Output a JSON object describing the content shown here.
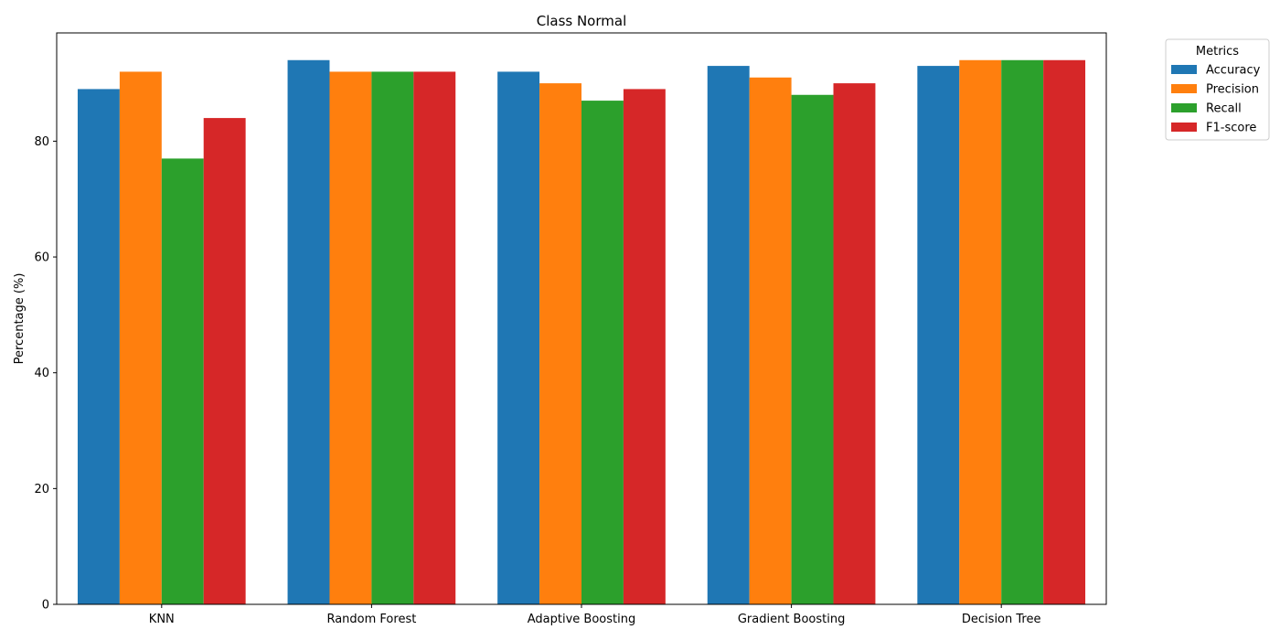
{
  "chart_data": {
    "type": "bar",
    "title": "Class Normal",
    "xlabel": "",
    "ylabel": "Percentage (%)",
    "ylim": [
      0,
      98.7
    ],
    "yticks": [
      0,
      20,
      40,
      60,
      80
    ],
    "categories": [
      "KNN",
      "Random Forest",
      "Adaptive Boosting",
      "Gradient Boosting",
      "Decision Tree"
    ],
    "series": [
      {
        "name": "Accuracy",
        "color": "#1f77b4",
        "values": [
          89,
          94,
          92,
          93,
          93
        ]
      },
      {
        "name": "Precision",
        "color": "#ff7f0e",
        "values": [
          92,
          92,
          90,
          91,
          94
        ]
      },
      {
        "name": "Recall",
        "color": "#2ca02c",
        "values": [
          77,
          92,
          87,
          88,
          94
        ]
      },
      {
        "name": "F1-score",
        "color": "#d62728",
        "values": [
          84,
          92,
          89,
          90,
          94
        ]
      }
    ],
    "legend": {
      "title": "Metrics",
      "placement": "outside-top-right"
    },
    "grid": false
  }
}
